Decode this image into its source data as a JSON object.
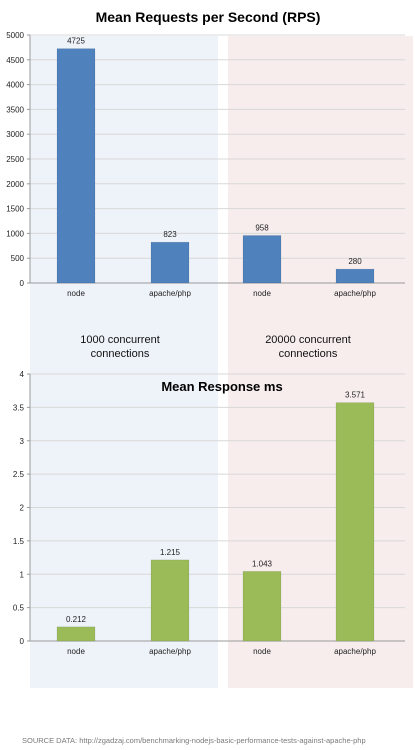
{
  "chart_data": [
    {
      "type": "bar",
      "title": "Mean Requests per Second (RPS)",
      "categories": [
        "node",
        "apache/php",
        "node",
        "apache/php"
      ],
      "values": [
        4725,
        823,
        958,
        280
      ],
      "data_labels": [
        "4725",
        "823",
        "958",
        "280"
      ],
      "ylim": [
        0,
        5000
      ],
      "yticks": [
        "0",
        "500",
        "1000",
        "1500",
        "2000",
        "2500",
        "3000",
        "3500",
        "4000",
        "4500",
        "5000"
      ],
      "bar_color": "#4f81bd",
      "grid": true
    },
    {
      "type": "bar",
      "title": "Mean Response ms",
      "categories": [
        "node",
        "apache/php",
        "node",
        "apache/php"
      ],
      "values": [
        0.212,
        1.215,
        1.043,
        3.571
      ],
      "data_labels": [
        "0.212",
        "1.215",
        "1.043",
        "3.571"
      ],
      "ylim": [
        0,
        4
      ],
      "yticks": [
        "0",
        "0.5",
        "1",
        "1.5",
        "2",
        "2.5",
        "3",
        "3.5",
        "4"
      ],
      "bar_color": "#9bbb59",
      "grid": true
    }
  ],
  "groups": {
    "left": "1000 concurrent connections",
    "left_line1": "1000 concurrent",
    "left_line2": "connections",
    "right": "20000 concurrent connections",
    "right_line1": "20000 concurrent",
    "right_line2": "connections",
    "left_color": "#eef2f9",
    "right_color": "#f7eded"
  },
  "source": "SOURCE DATA: http://zgadzaj.com/benchmarking-nodejs-basic-performance-tests-against-apache-php"
}
